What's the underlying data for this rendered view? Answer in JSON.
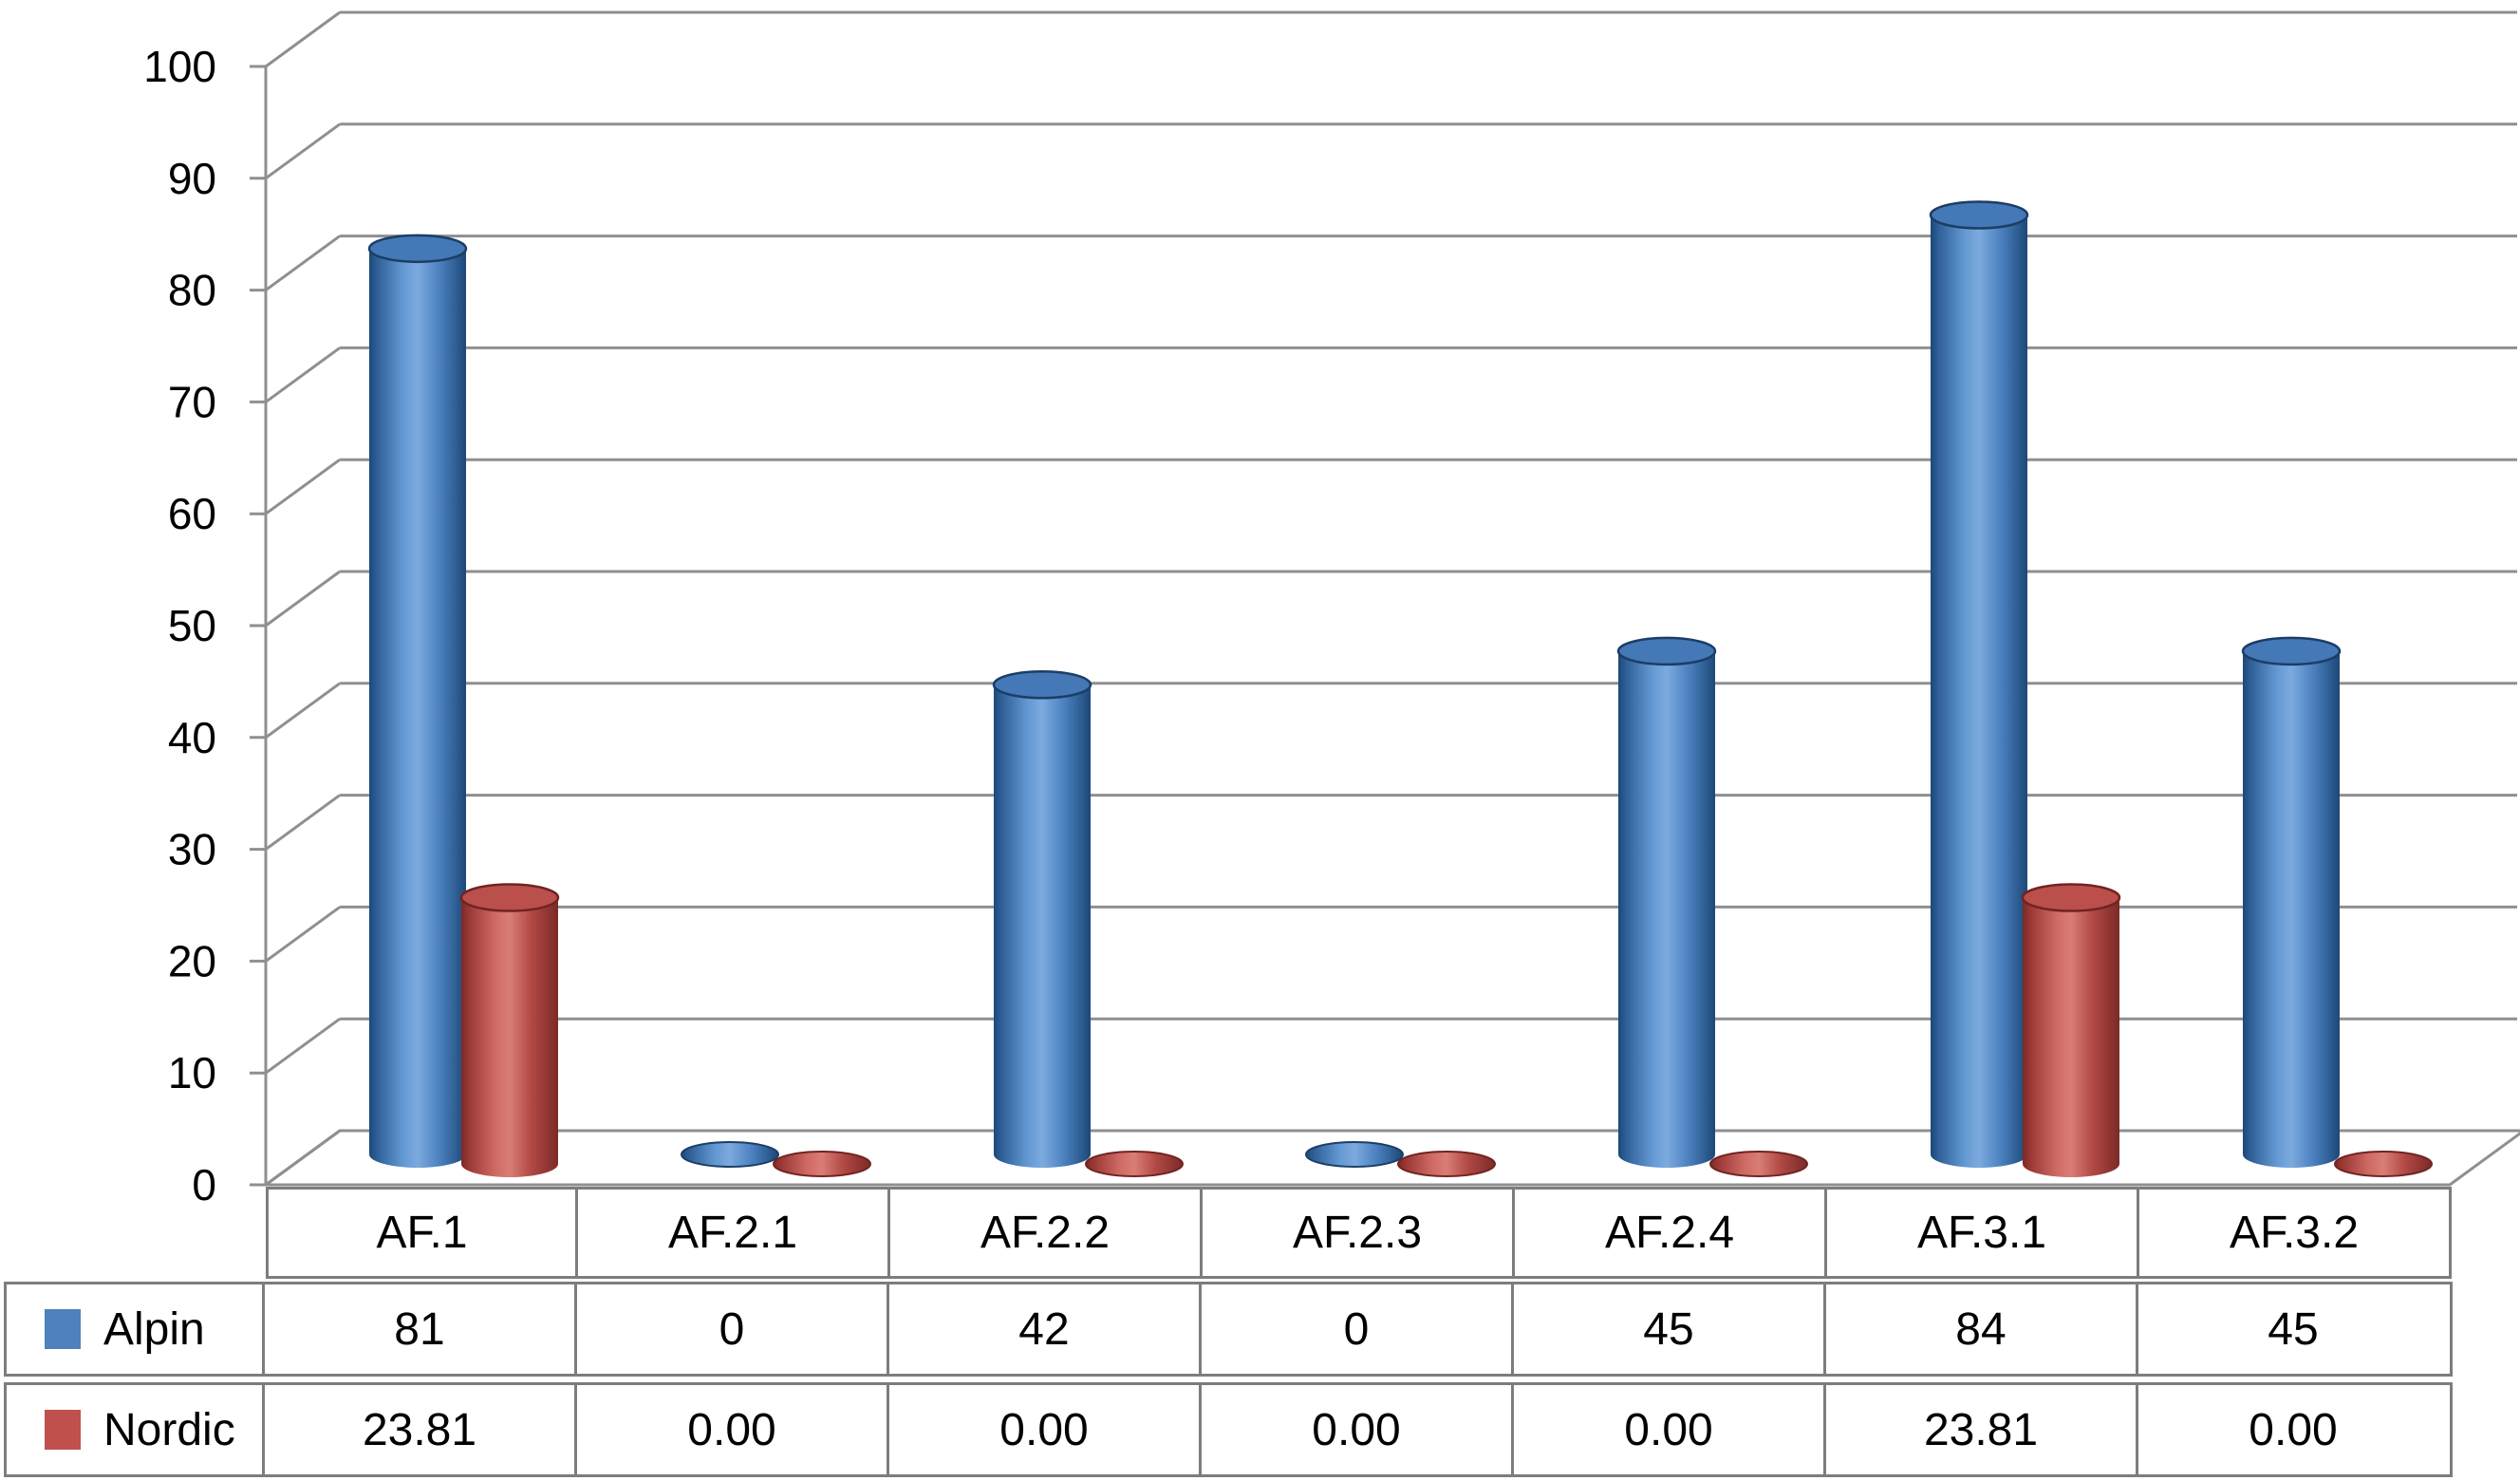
{
  "figure": {
    "background": "#ffffff"
  },
  "chart_data": {
    "type": "bar",
    "subtype": "3d-cylinder",
    "title": "",
    "categories": [
      "AF.1",
      "AF.2.1",
      "AF.2.2",
      "AF.2.3",
      "AF.2.4",
      "AF.3.1",
      "AF.3.2"
    ],
    "series": [
      {
        "name": "Alpin",
        "color": "#4F81BD",
        "values": [
          81,
          0,
          42,
          0,
          45,
          84,
          45
        ],
        "labels": [
          "81",
          "0",
          "42",
          "0",
          "45",
          "84",
          "45"
        ]
      },
      {
        "name": "Nordic",
        "color": "#C0504D",
        "values": [
          23.81,
          0,
          0,
          0,
          0,
          23.81,
          0
        ],
        "labels": [
          "23.81",
          "0.00",
          "0.00",
          "0.00",
          "0.00",
          "23.81",
          "0.00"
        ]
      }
    ],
    "y_axis": {
      "min": 0,
      "max": 100,
      "step": 10,
      "tick_labels": [
        "0",
        "10",
        "20",
        "30",
        "40",
        "50",
        "60",
        "70",
        "80",
        "90",
        "100"
      ]
    },
    "xlabel": "",
    "ylabel": "",
    "grid": true,
    "legend_position": "data-table-left",
    "data_table_shown": true
  }
}
